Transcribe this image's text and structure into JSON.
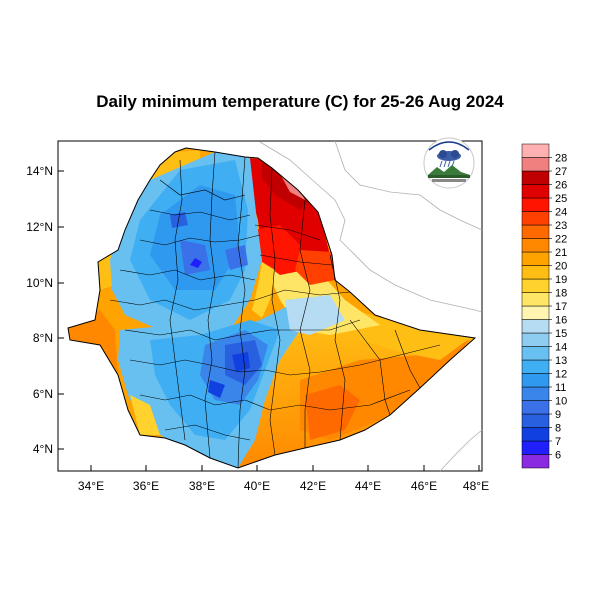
{
  "title": "Daily minimum temperature (C) for 25-26 Aug 2024",
  "map": {
    "lon_ticks": [
      "34°E",
      "36°E",
      "38°E",
      "40°E",
      "42°E",
      "44°E",
      "46°E",
      "48°E"
    ],
    "lat_ticks": [
      "4°N",
      "6°N",
      "8°N",
      "10°N",
      "12°N",
      "14°N"
    ]
  },
  "colorbar": {
    "labels": [
      "6",
      "7",
      "8",
      "9",
      "10",
      "11",
      "12",
      "13",
      "14",
      "15",
      "16",
      "17",
      "18",
      "19",
      "20",
      "21",
      "22",
      "23",
      "24",
      "25",
      "26",
      "27",
      "28"
    ],
    "colors": [
      "#8a2be2",
      "#2020ff",
      "#1040e0",
      "#2860e0",
      "#3a70e8",
      "#3a85ea",
      "#2f99f0",
      "#40aef2",
      "#68c0f0",
      "#8ecdf0",
      "#b5dcf2",
      "#fff5b0",
      "#ffe566",
      "#ffd22e",
      "#ffbe14",
      "#ffa300",
      "#ff8800",
      "#ff6a00",
      "#ff4000",
      "#ff1400",
      "#e00000",
      "#c00000",
      "#f08080",
      "#ffb0b0"
    ]
  },
  "logo": {
    "name": "ethiopia-meteorology-logo"
  }
}
